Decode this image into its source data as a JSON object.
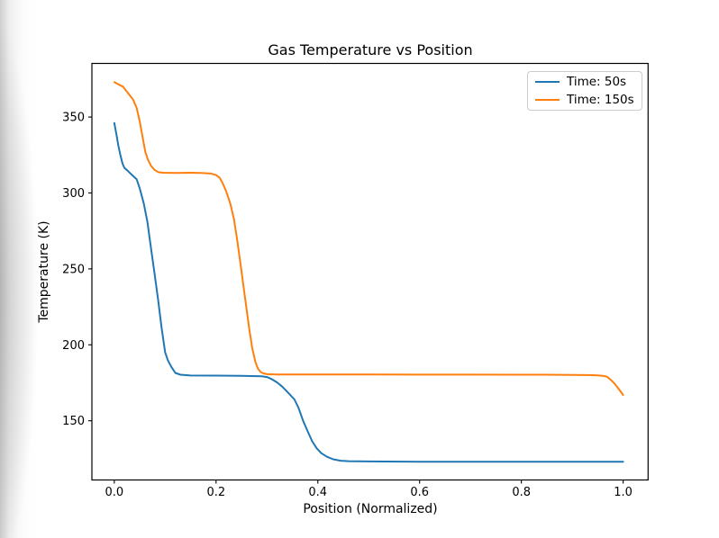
{
  "figure": {
    "title": "Gas Temperature vs Position",
    "xlabel": "Position (Normalized)",
    "ylabel": "Temperature (K)"
  },
  "legend": {
    "items": [
      {
        "label": "Time: 50s",
        "color": "#1f77b4"
      },
      {
        "label": "Time: 150s",
        "color": "#ff7f0e"
      }
    ]
  },
  "chart_data": {
    "type": "line",
    "title": "Gas Temperature vs Position",
    "xlabel": "Position (Normalized)",
    "ylabel": "Temperature (K)",
    "xlim": [
      -0.044,
      1.049
    ],
    "ylim": [
      111,
      385.3
    ],
    "xticks": [
      0.0,
      0.2,
      0.4,
      0.6,
      0.8,
      1.0
    ],
    "xtick_labels": [
      "0.0",
      "0.2",
      "0.4",
      "0.6",
      "0.8",
      "1.0"
    ],
    "yticks": [
      150,
      200,
      250,
      300,
      350
    ],
    "ytick_labels": [
      "150",
      "200",
      "250",
      "300",
      "350"
    ],
    "grid": false,
    "legend_position": "upper right",
    "axes_edge_color": "#000000",
    "series": [
      {
        "name": "Time: 50s",
        "color": "#1f77b4",
        "points": [
          [
            0,
            346
          ],
          [
            0.004,
            339
          ],
          [
            0.008,
            331
          ],
          [
            0.012,
            325
          ],
          [
            0.016,
            319.5
          ],
          [
            0.02,
            316.5
          ],
          [
            0.028,
            314
          ],
          [
            0.036,
            311.5
          ],
          [
            0.044,
            309
          ],
          [
            0.05,
            303
          ],
          [
            0.058,
            293
          ],
          [
            0.065,
            281
          ],
          [
            0.072,
            264
          ],
          [
            0.079,
            247
          ],
          [
            0.086,
            230
          ],
          [
            0.093,
            211
          ],
          [
            0.1,
            195
          ],
          [
            0.105,
            190
          ],
          [
            0.112,
            185.5
          ],
          [
            0.12,
            181.5
          ],
          [
            0.13,
            180.3
          ],
          [
            0.15,
            179.8
          ],
          [
            0.2,
            179.7
          ],
          [
            0.25,
            179.6
          ],
          [
            0.29,
            179.3
          ],
          [
            0.3,
            178.8
          ],
          [
            0.31,
            177.3
          ],
          [
            0.32,
            175.2
          ],
          [
            0.33,
            172.5
          ],
          [
            0.34,
            169
          ],
          [
            0.354,
            164
          ],
          [
            0.362,
            158.5
          ],
          [
            0.371,
            150
          ],
          [
            0.38,
            143
          ],
          [
            0.389,
            136.5
          ],
          [
            0.398,
            131.8
          ],
          [
            0.407,
            128.6
          ],
          [
            0.418,
            126.3
          ],
          [
            0.43,
            124.6
          ],
          [
            0.445,
            123.7
          ],
          [
            0.46,
            123.4
          ],
          [
            0.5,
            123.2
          ],
          [
            0.6,
            123
          ],
          [
            0.7,
            123
          ],
          [
            0.8,
            123
          ],
          [
            0.9,
            123
          ],
          [
            1,
            123
          ]
        ]
      },
      {
        "name": "Time: 150s",
        "color": "#ff7f0e",
        "points": [
          [
            0,
            373
          ],
          [
            0.008,
            371.5
          ],
          [
            0.017,
            370
          ],
          [
            0.024,
            367
          ],
          [
            0.03,
            364.5
          ],
          [
            0.037,
            361.5
          ],
          [
            0.044,
            356
          ],
          [
            0.05,
            347
          ],
          [
            0.056,
            336
          ],
          [
            0.061,
            327
          ],
          [
            0.066,
            322
          ],
          [
            0.072,
            318
          ],
          [
            0.079,
            315.2
          ],
          [
            0.086,
            313.8
          ],
          [
            0.095,
            313.3
          ],
          [
            0.12,
            313.2
          ],
          [
            0.15,
            313.3
          ],
          [
            0.17,
            313.2
          ],
          [
            0.19,
            312.8
          ],
          [
            0.2,
            311.8
          ],
          [
            0.207,
            310
          ],
          [
            0.213,
            306.5
          ],
          [
            0.22,
            301
          ],
          [
            0.228,
            293
          ],
          [
            0.235,
            283
          ],
          [
            0.241,
            270
          ],
          [
            0.247,
            256
          ],
          [
            0.253,
            241
          ],
          [
            0.259,
            226
          ],
          [
            0.265,
            211
          ],
          [
            0.271,
            198
          ],
          [
            0.277,
            189
          ],
          [
            0.282,
            184.5
          ],
          [
            0.287,
            182.3
          ],
          [
            0.293,
            181.2
          ],
          [
            0.3,
            180.7
          ],
          [
            0.32,
            180.5
          ],
          [
            0.4,
            180.5
          ],
          [
            0.5,
            180.5
          ],
          [
            0.6,
            180.4
          ],
          [
            0.7,
            180.4
          ],
          [
            0.8,
            180.3
          ],
          [
            0.85,
            180.3
          ],
          [
            0.9,
            180.2
          ],
          [
            0.93,
            180.1
          ],
          [
            0.95,
            179.9
          ],
          [
            0.96,
            179.6
          ],
          [
            0.968,
            179
          ],
          [
            0.975,
            177.2
          ],
          [
            0.982,
            174.8
          ],
          [
            0.99,
            171.5
          ],
          [
            1,
            167
          ]
        ]
      }
    ]
  }
}
